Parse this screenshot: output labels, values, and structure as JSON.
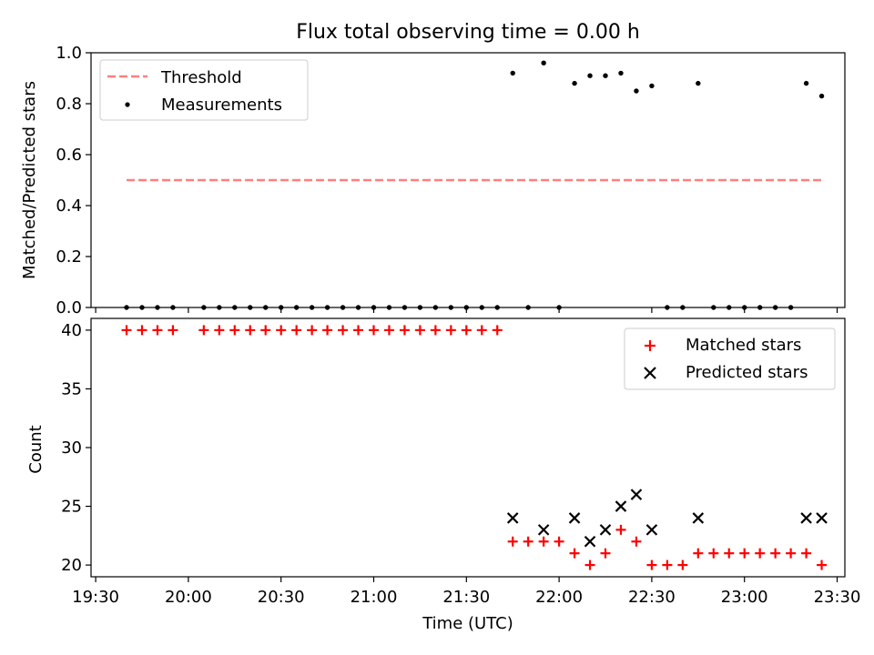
{
  "figure": {
    "title": "Flux total observing time = 0.00 h"
  },
  "chart_data": [
    {
      "type": "scatter",
      "ylabel": "Matched/Predicted stars",
      "xlim": [
        "19:30",
        "23:30"
      ],
      "ylim": [
        0,
        1.0
      ],
      "yticks": [
        0,
        0.2,
        0.4,
        0.6,
        0.8,
        1.0
      ],
      "ytick_labels": [
        "0.0",
        "0.2",
        "0.4",
        "0.6",
        "0.8",
        "1.0"
      ],
      "legend_position": "top-left",
      "threshold": {
        "name": "Threshold",
        "value": 0.5,
        "x_start": "19:40",
        "x_end": "23:25",
        "color": "#ff7f7f",
        "style": "dashed"
      },
      "series": [
        {
          "name": "Measurements",
          "color": "#000000",
          "marker": "dot",
          "x": [
            "19:40",
            "19:45",
            "19:50",
            "19:55",
            "20:05",
            "20:10",
            "20:15",
            "20:20",
            "20:25",
            "20:30",
            "20:35",
            "20:40",
            "20:45",
            "20:50",
            "20:55",
            "21:00",
            "21:05",
            "21:10",
            "21:15",
            "21:20",
            "21:25",
            "21:30",
            "21:35",
            "21:40",
            "21:45",
            "21:50",
            "21:55",
            "22:00",
            "22:05",
            "22:10",
            "22:15",
            "22:20",
            "22:25",
            "22:30",
            "22:35",
            "22:40",
            "22:45",
            "22:50",
            "22:55",
            "23:00",
            "23:05",
            "23:10",
            "23:15",
            "23:20",
            "23:25"
          ],
          "y": [
            0,
            0,
            0,
            0,
            0,
            0,
            0,
            0,
            0,
            0,
            0,
            0,
            0,
            0,
            0,
            0,
            0,
            0,
            0,
            0,
            0,
            0,
            0,
            0,
            0.92,
            0,
            0.96,
            0,
            0.88,
            0.91,
            0.91,
            0.92,
            0.85,
            0.87,
            0,
            0,
            0.88,
            0,
            0,
            0,
            0,
            0,
            0,
            0.88,
            0.83
          ]
        }
      ]
    },
    {
      "type": "scatter",
      "xlabel": "Time (UTC)",
      "ylabel": "Count",
      "xlim": [
        "19:30",
        "23:30"
      ],
      "xtick_labels": [
        "19:30",
        "20:00",
        "20:30",
        "21:00",
        "21:30",
        "22:00",
        "22:30",
        "23:00",
        "23:30"
      ],
      "ylim": [
        19,
        41
      ],
      "yticks": [
        20,
        25,
        30,
        35,
        40
      ],
      "ytick_labels": [
        "20",
        "25",
        "30",
        "35",
        "40"
      ],
      "legend_position": "top-right",
      "series": [
        {
          "name": "Matched stars",
          "color": "#ff0000",
          "marker": "plus",
          "x": [
            "19:40",
            "19:45",
            "19:50",
            "19:55",
            "20:05",
            "20:10",
            "20:15",
            "20:20",
            "20:25",
            "20:30",
            "20:35",
            "20:40",
            "20:45",
            "20:50",
            "20:55",
            "21:00",
            "21:05",
            "21:10",
            "21:15",
            "21:20",
            "21:25",
            "21:30",
            "21:35",
            "21:40",
            "21:45",
            "21:50",
            "21:55",
            "22:00",
            "22:05",
            "22:10",
            "22:15",
            "22:20",
            "22:25",
            "22:30",
            "22:35",
            "22:40",
            "22:45",
            "22:50",
            "22:55",
            "23:00",
            "23:05",
            "23:10",
            "23:15",
            "23:20",
            "23:25"
          ],
          "y": [
            40,
            40,
            40,
            40,
            40,
            40,
            40,
            40,
            40,
            40,
            40,
            40,
            40,
            40,
            40,
            40,
            40,
            40,
            40,
            40,
            40,
            40,
            40,
            40,
            22,
            22,
            22,
            22,
            21,
            20,
            21,
            23,
            22,
            20,
            20,
            20,
            21,
            21,
            21,
            21,
            21,
            21,
            21,
            21,
            20
          ]
        },
        {
          "name": "Predicted stars",
          "color": "#000000",
          "marker": "x",
          "x": [
            "21:45",
            "21:55",
            "22:05",
            "22:10",
            "22:15",
            "22:20",
            "22:25",
            "22:30",
            "22:45",
            "23:20",
            "23:25"
          ],
          "y": [
            24,
            23,
            24,
            22,
            23,
            25,
            26,
            23,
            24,
            24,
            24
          ]
        }
      ]
    }
  ]
}
